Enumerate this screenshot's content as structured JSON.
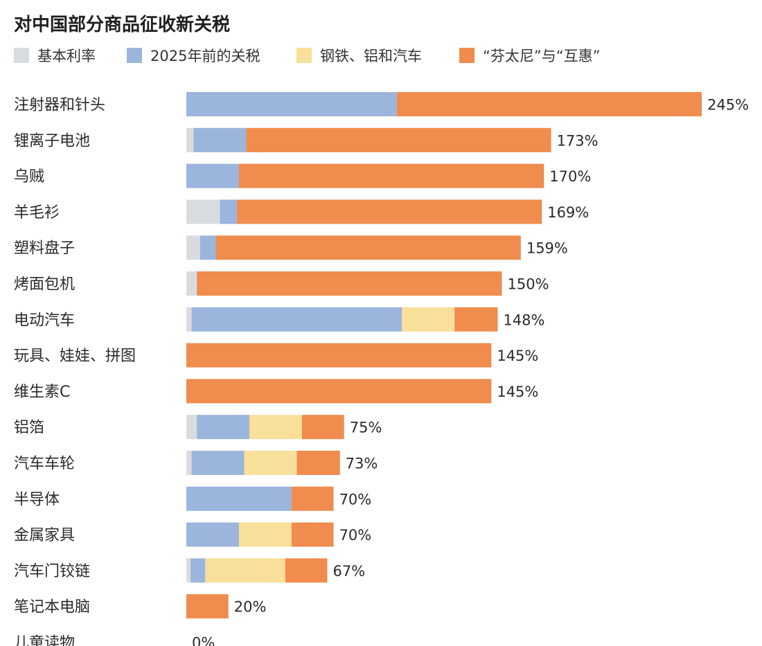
{
  "chart_data": {
    "type": "bar",
    "orientation": "horizontal",
    "stacked": true,
    "title": "对中国部分商品征收新关税",
    "legend_position": "top-left",
    "grid": false,
    "xlim": [
      0,
      245
    ],
    "series": [
      {
        "name": "基本利率",
        "color": "#d9dcdf"
      },
      {
        "name": "2025年前的关税",
        "color": "#9bb5dc"
      },
      {
        "name": "钢铁、铝和汽车",
        "color": "#f8df9a"
      },
      {
        "name": "“芬太尼”与“互惠”",
        "color": "#f08c4d"
      }
    ],
    "categories": [
      "注射器和针头",
      "锂离子电池",
      "乌贼",
      "羊毛衫",
      "塑料盘子",
      "烤面包机",
      "电动汽车",
      "玩具、娃娃、拼图",
      "维生素C",
      "铝箔",
      "汽车车轮",
      "半导体",
      "金属家具",
      "汽车门铰链",
      "笔记本电脑",
      "儿童读物"
    ],
    "values": [
      [
        0,
        100,
        0,
        145
      ],
      [
        3.4,
        25,
        0,
        145
      ],
      [
        0,
        25,
        0,
        145
      ],
      [
        16,
        8,
        0,
        145
      ],
      [
        6.5,
        7.5,
        0,
        145
      ],
      [
        5,
        0,
        0,
        145
      ],
      [
        2.5,
        100,
        25,
        20.5
      ],
      [
        0,
        0,
        0,
        145
      ],
      [
        0,
        0,
        0,
        145
      ],
      [
        5,
        25,
        25,
        20
      ],
      [
        2.5,
        25,
        25,
        20.5
      ],
      [
        0,
        50,
        0,
        20
      ],
      [
        0,
        25,
        25,
        20
      ],
      [
        2,
        7,
        38,
        20
      ],
      [
        0,
        0,
        0,
        20
      ],
      [
        0,
        0,
        0,
        0
      ]
    ],
    "totals": [
      "245%",
      "173%",
      "170%",
      "169%",
      "159%",
      "150%",
      "148%",
      "145%",
      "145%",
      "75%",
      "73%",
      "70%",
      "70%",
      "67%",
      "20%",
      "0%"
    ]
  }
}
